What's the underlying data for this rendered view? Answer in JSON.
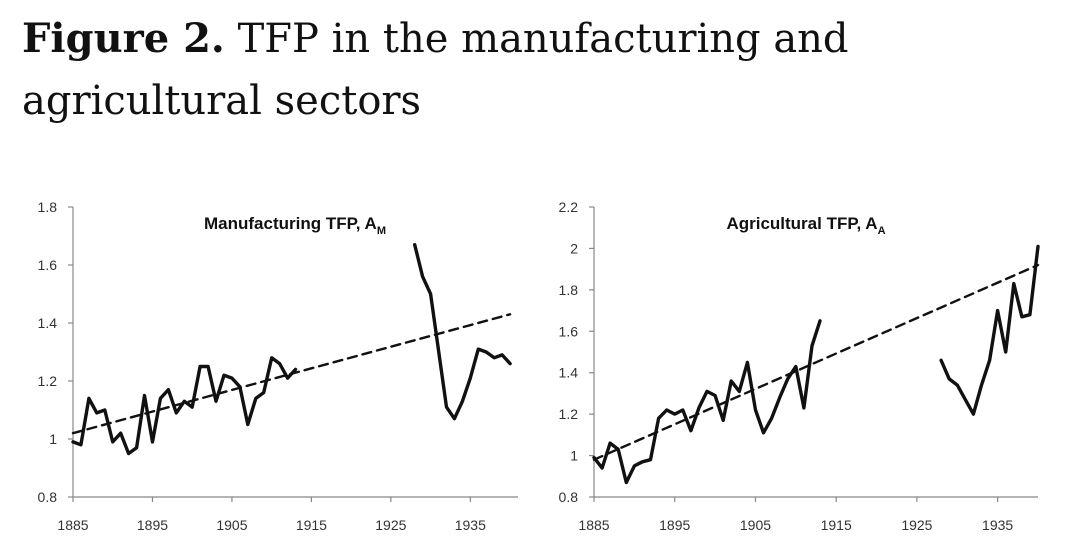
{
  "figure": {
    "label": "Figure 2.",
    "caption": "TFP in the manufacturing and agricultural sectors"
  },
  "chart_data": [
    {
      "type": "line",
      "title": "Manufacturing TFP, A",
      "title_subscript": "M",
      "xlabel": "",
      "ylabel": "",
      "xlim": [
        1885,
        1941
      ],
      "ylim": [
        0.8,
        1.8
      ],
      "x_ticks": [
        "1885",
        "1895",
        "1905",
        "1915",
        "1925",
        "1935"
      ],
      "y_ticks": [
        "0.8",
        "1",
        "1.2",
        "1.4",
        "1.6",
        "1.8"
      ],
      "grid": false,
      "legend": "none",
      "series": [
        {
          "style": "solid",
          "segments": [
            [
              [
                1885,
                0.99
              ],
              [
                1886,
                0.98
              ],
              [
                1887,
                1.14
              ],
              [
                1888,
                1.09
              ],
              [
                1889,
                1.1
              ],
              [
                1890,
                0.99
              ],
              [
                1891,
                1.02
              ],
              [
                1892,
                0.95
              ],
              [
                1893,
                0.97
              ],
              [
                1894,
                1.15
              ],
              [
                1895,
                0.99
              ],
              [
                1896,
                1.14
              ],
              [
                1897,
                1.17
              ],
              [
                1898,
                1.09
              ],
              [
                1899,
                1.13
              ],
              [
                1900,
                1.11
              ],
              [
                1901,
                1.25
              ],
              [
                1902,
                1.25
              ],
              [
                1903,
                1.13
              ],
              [
                1904,
                1.22
              ],
              [
                1905,
                1.21
              ],
              [
                1906,
                1.18
              ],
              [
                1907,
                1.05
              ],
              [
                1908,
                1.14
              ],
              [
                1909,
                1.16
              ],
              [
                1910,
                1.28
              ],
              [
                1911,
                1.26
              ],
              [
                1912,
                1.21
              ],
              [
                1913,
                1.24
              ]
            ],
            [
              [
                1928,
                1.67
              ],
              [
                1929,
                1.56
              ],
              [
                1930,
                1.5
              ],
              [
                1932,
                1.11
              ],
              [
                1933,
                1.07
              ],
              [
                1934,
                1.13
              ],
              [
                1935,
                1.21
              ],
              [
                1936,
                1.31
              ],
              [
                1937,
                1.3
              ],
              [
                1938,
                1.28
              ],
              [
                1939,
                1.29
              ],
              [
                1940,
                1.26
              ]
            ]
          ]
        },
        {
          "style": "dashed",
          "segments": [
            [
              [
                1885,
                1.02
              ],
              [
                1940,
                1.43
              ]
            ]
          ]
        }
      ]
    },
    {
      "type": "line",
      "title": "Agricultural TFP, A",
      "title_subscript": "A",
      "xlabel": "",
      "ylabel": "",
      "xlim": [
        1885,
        1940
      ],
      "ylim": [
        0.8,
        2.2
      ],
      "x_ticks": [
        "1885",
        "1895",
        "1905",
        "1915",
        "1925",
        "1935"
      ],
      "y_ticks": [
        "0.8",
        "1",
        "1.2",
        "1.4",
        "1.6",
        "1.8",
        "2",
        "2.2"
      ],
      "grid": false,
      "legend": "none",
      "series": [
        {
          "style": "solid",
          "segments": [
            [
              [
                1885,
                0.99
              ],
              [
                1886,
                0.94
              ],
              [
                1887,
                1.06
              ],
              [
                1888,
                1.03
              ],
              [
                1889,
                0.87
              ],
              [
                1890,
                0.95
              ],
              [
                1891,
                0.97
              ],
              [
                1892,
                0.98
              ],
              [
                1893,
                1.18
              ],
              [
                1894,
                1.22
              ],
              [
                1895,
                1.2
              ],
              [
                1896,
                1.22
              ],
              [
                1897,
                1.12
              ],
              [
                1898,
                1.23
              ],
              [
                1899,
                1.31
              ],
              [
                1900,
                1.29
              ],
              [
                1901,
                1.17
              ],
              [
                1902,
                1.36
              ],
              [
                1903,
                1.31
              ],
              [
                1904,
                1.45
              ],
              [
                1905,
                1.22
              ],
              [
                1906,
                1.11
              ],
              [
                1907,
                1.18
              ],
              [
                1908,
                1.28
              ],
              [
                1909,
                1.37
              ],
              [
                1910,
                1.43
              ],
              [
                1911,
                1.23
              ],
              [
                1912,
                1.53
              ],
              [
                1913,
                1.65
              ]
            ],
            [
              [
                1928,
                1.46
              ],
              [
                1929,
                1.37
              ],
              [
                1930,
                1.34
              ],
              [
                1931,
                1.27
              ],
              [
                1932,
                1.2
              ],
              [
                1933,
                1.34
              ],
              [
                1934,
                1.46
              ],
              [
                1935,
                1.7
              ],
              [
                1936,
                1.5
              ],
              [
                1937,
                1.83
              ],
              [
                1938,
                1.67
              ],
              [
                1939,
                1.68
              ],
              [
                1940,
                2.01
              ]
            ]
          ]
        },
        {
          "style": "dashed",
          "segments": [
            [
              [
                1885,
                0.98
              ],
              [
                1940,
                1.92
              ]
            ]
          ]
        }
      ]
    }
  ]
}
